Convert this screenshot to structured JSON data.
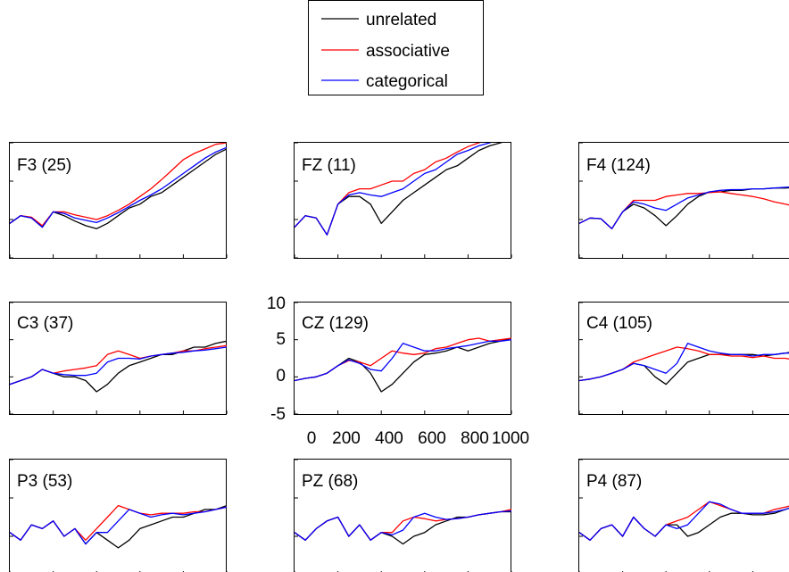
{
  "legend": {
    "items": [
      {
        "label": "unrelated",
        "color": "#000000"
      },
      {
        "label": "associative",
        "color": "#ff0000"
      },
      {
        "label": "categorical",
        "color": "#0000ff"
      }
    ]
  },
  "chart_data": {
    "type": "line",
    "layout": "3x3 small multiples",
    "x": [
      0,
      50,
      100,
      150,
      200,
      250,
      300,
      350,
      400,
      450,
      500,
      550,
      600,
      650,
      700,
      750,
      800,
      850,
      900,
      950,
      1000
    ],
    "xlim": [
      0,
      1000
    ],
    "ylim": [
      -5,
      10
    ],
    "xticks": [
      0,
      200,
      400,
      600,
      800,
      1000
    ],
    "xtick_labels": [
      "0",
      "200",
      "400",
      "600",
      "800",
      "1000"
    ],
    "yticks": [
      10,
      5,
      0,
      -5
    ],
    "ytick_labels": [
      "10",
      "5",
      "0",
      "-5"
    ],
    "tick_labels_shown_on": "CZ (129)",
    "legend_position": "top-center",
    "series_names": [
      "unrelated",
      "associative",
      "categorical"
    ],
    "series_colors": [
      "#000000",
      "#ff0000",
      "#0000ff"
    ],
    "panels": [
      {
        "title": "F3 (25)",
        "unrelated": [
          -0.5,
          0.5,
          0.2,
          -1,
          1,
          0.5,
          -0.2,
          -0.8,
          -1.2,
          -0.5,
          0.5,
          1.5,
          2,
          3,
          3.5,
          4.5,
          5.5,
          6.5,
          7.5,
          8.5,
          9.2
        ],
        "associative": [
          -0.5,
          0.5,
          0.3,
          -0.8,
          1,
          1,
          0.6,
          0.3,
          0,
          0.5,
          1.2,
          2,
          3,
          4,
          5.2,
          6.5,
          7.8,
          8.6,
          9.2,
          9.8,
          10
        ],
        "categorical": [
          -0.5,
          0.5,
          0.2,
          -1,
          1,
          0.8,
          0.2,
          -0.1,
          -0.4,
          0.2,
          0.9,
          1.7,
          2.5,
          3.2,
          4,
          5,
          6,
          7,
          8,
          8.8,
          9.4
        ]
      },
      {
        "title": "FZ (11)",
        "unrelated": [
          -1,
          0.5,
          0.2,
          -2,
          2,
          3,
          3,
          2,
          -0.5,
          1,
          2.5,
          3.5,
          4.5,
          5.5,
          6.5,
          7,
          8,
          9,
          9.6,
          10,
          10.5
        ],
        "associative": [
          -1,
          0.5,
          0.2,
          -2,
          2,
          3.5,
          4,
          4,
          4.5,
          5,
          5,
          6,
          6.5,
          7.5,
          8,
          8.8,
          9.5,
          10,
          10.4,
          10.6,
          10.8
        ],
        "categorical": [
          -1,
          0.5,
          0.2,
          -2,
          2,
          3.2,
          3.5,
          3.2,
          3,
          3.5,
          4,
          5,
          6,
          6.5,
          7.5,
          8.5,
          9,
          9.6,
          10,
          10.5,
          11.2
        ]
      },
      {
        "title": "F4 (124)",
        "unrelated": [
          -0.5,
          0.2,
          0.1,
          -1.2,
          1,
          2,
          1.5,
          0.5,
          -0.8,
          0.5,
          2,
          3,
          3.6,
          3.6,
          3.8,
          3.8,
          4,
          4,
          4.1,
          4.1,
          4.2
        ],
        "associative": [
          -0.5,
          0.2,
          0.1,
          -1.2,
          1,
          2.5,
          2.5,
          2.5,
          3,
          3.2,
          3.4,
          3.4,
          3.5,
          3.6,
          3.4,
          3.2,
          3,
          2.7,
          2.3,
          2,
          1.7
        ],
        "categorical": [
          -0.5,
          0.2,
          0.1,
          -1.2,
          1,
          2.3,
          2,
          1.5,
          1.2,
          2,
          2.8,
          3.2,
          3.6,
          3.8,
          3.9,
          3.9,
          4,
          4,
          4.1,
          4.2,
          4.3
        ]
      },
      {
        "title": "C3 (37)",
        "unrelated": [
          -1,
          -0.5,
          0,
          1,
          0.5,
          0,
          0,
          -0.5,
          -2,
          -1,
          0.5,
          1.5,
          2,
          2.5,
          3,
          3,
          3.5,
          4,
          4,
          4.5,
          4.8
        ],
        "associative": [
          -1,
          -0.5,
          0,
          1,
          0.5,
          0.8,
          1,
          1.2,
          1.5,
          3,
          3.5,
          3,
          2.5,
          2.8,
          3,
          3.2,
          3.5,
          3.5,
          3.8,
          4,
          4.2
        ],
        "categorical": [
          -1,
          -0.5,
          0,
          1,
          0.5,
          0.3,
          0.2,
          0.2,
          0.5,
          2,
          2.5,
          2.5,
          2.4,
          2.8,
          3,
          3.2,
          3.3,
          3.5,
          3.6,
          3.8,
          4
        ]
      },
      {
        "title": "CZ (129)",
        "unrelated": [
          -0.5,
          -0.2,
          0,
          0.5,
          1.5,
          2.5,
          2,
          0.5,
          -2,
          -1,
          0.5,
          2,
          3,
          3.2,
          3.5,
          4,
          3.5,
          4,
          4.5,
          4.8,
          5.2
        ],
        "associative": [
          -0.5,
          -0.2,
          0,
          0.5,
          1.5,
          2.2,
          2,
          1.5,
          2.5,
          3.5,
          3.2,
          3,
          3.2,
          3.8,
          4,
          4.5,
          5,
          5.2,
          4.8,
          5,
          5.2
        ],
        "categorical": [
          -0.5,
          -0.2,
          0,
          0.5,
          1.5,
          2.3,
          1.8,
          1,
          0.8,
          2.5,
          4.5,
          4,
          3.5,
          3.5,
          3.8,
          4,
          4.2,
          4.5,
          4.8,
          4.8,
          5
        ]
      },
      {
        "title": "C4 (105)",
        "unrelated": [
          -0.5,
          -0.3,
          0,
          0.5,
          1,
          1.8,
          1.5,
          0,
          -1,
          0.5,
          2,
          2.5,
          3,
          3,
          3,
          3,
          3,
          2.8,
          3,
          3.2,
          3.5
        ],
        "associative": [
          -0.5,
          -0.3,
          0,
          0.5,
          1,
          2,
          2.5,
          3,
          3.5,
          4,
          3.8,
          3.5,
          3,
          3,
          2.8,
          2.8,
          2.6,
          2.8,
          2.5,
          2.5,
          2.2
        ],
        "categorical": [
          -0.5,
          -0.3,
          0,
          0.5,
          1,
          1.8,
          1.5,
          1,
          0.5,
          1.8,
          4.5,
          4,
          3.5,
          3.2,
          3,
          3,
          2.8,
          3,
          3,
          3.2,
          3.2
        ]
      },
      {
        "title": "P3 (53)",
        "unrelated": [
          0.5,
          -0.5,
          1.5,
          1,
          2,
          0,
          1,
          -1,
          0.5,
          -0.5,
          -1.5,
          -0.5,
          1,
          1.5,
          2,
          2.5,
          2.5,
          3,
          3.5,
          3.5,
          4
        ],
        "associative": [
          0.5,
          -0.5,
          1.5,
          1,
          2,
          0,
          1,
          -0.5,
          1,
          2.5,
          4,
          3.5,
          3,
          2.8,
          3,
          3,
          3,
          3.2,
          3.2,
          3.5,
          3.8
        ],
        "categorical": [
          0.5,
          -0.5,
          1.5,
          1,
          2,
          0,
          1,
          -1,
          0.5,
          0.5,
          2,
          3.5,
          3,
          2.5,
          2.8,
          3,
          2.8,
          3,
          3.2,
          3.5,
          3.8
        ]
      },
      {
        "title": "PZ (68)",
        "unrelated": [
          0.5,
          -0.5,
          1,
          2,
          2.5,
          0,
          1.5,
          -0.5,
          0.5,
          0,
          -1,
          0,
          0.5,
          1.5,
          2,
          2.5,
          2.5,
          2.8,
          3,
          3.2,
          3.2
        ],
        "associative": [
          0.5,
          -0.5,
          1,
          2,
          2.5,
          0,
          1.5,
          -0.5,
          0.5,
          0.5,
          2,
          2.5,
          2.3,
          2,
          2.2,
          2.3,
          2.5,
          2.8,
          3,
          3.2,
          3.5
        ],
        "categorical": [
          0.5,
          -0.5,
          1,
          2,
          2.5,
          0,
          1.5,
          -0.5,
          0.5,
          0.2,
          0.8,
          2.5,
          3,
          2.5,
          2.2,
          2.3,
          2.5,
          2.8,
          3,
          3.2,
          3.3
        ]
      },
      {
        "title": "P4 (87)",
        "unrelated": [
          0.5,
          -0.5,
          1,
          1.5,
          0,
          2.5,
          1,
          0,
          1.5,
          1.5,
          0,
          0.5,
          1.5,
          2.5,
          3,
          3,
          2.8,
          2.8,
          3,
          3.5,
          4
        ],
        "associative": [
          0.5,
          -0.5,
          1,
          1.5,
          0,
          2.5,
          1,
          0,
          1.5,
          2,
          2.5,
          3.5,
          4.5,
          4,
          3.5,
          3,
          3,
          3,
          3.5,
          3.8,
          4.2
        ],
        "categorical": [
          0.5,
          -0.5,
          1,
          1.5,
          0,
          2.5,
          1,
          0,
          1.5,
          1,
          1.5,
          3,
          4.5,
          4.2,
          3.5,
          3,
          3,
          3,
          3.2,
          3.5,
          4
        ]
      }
    ]
  }
}
